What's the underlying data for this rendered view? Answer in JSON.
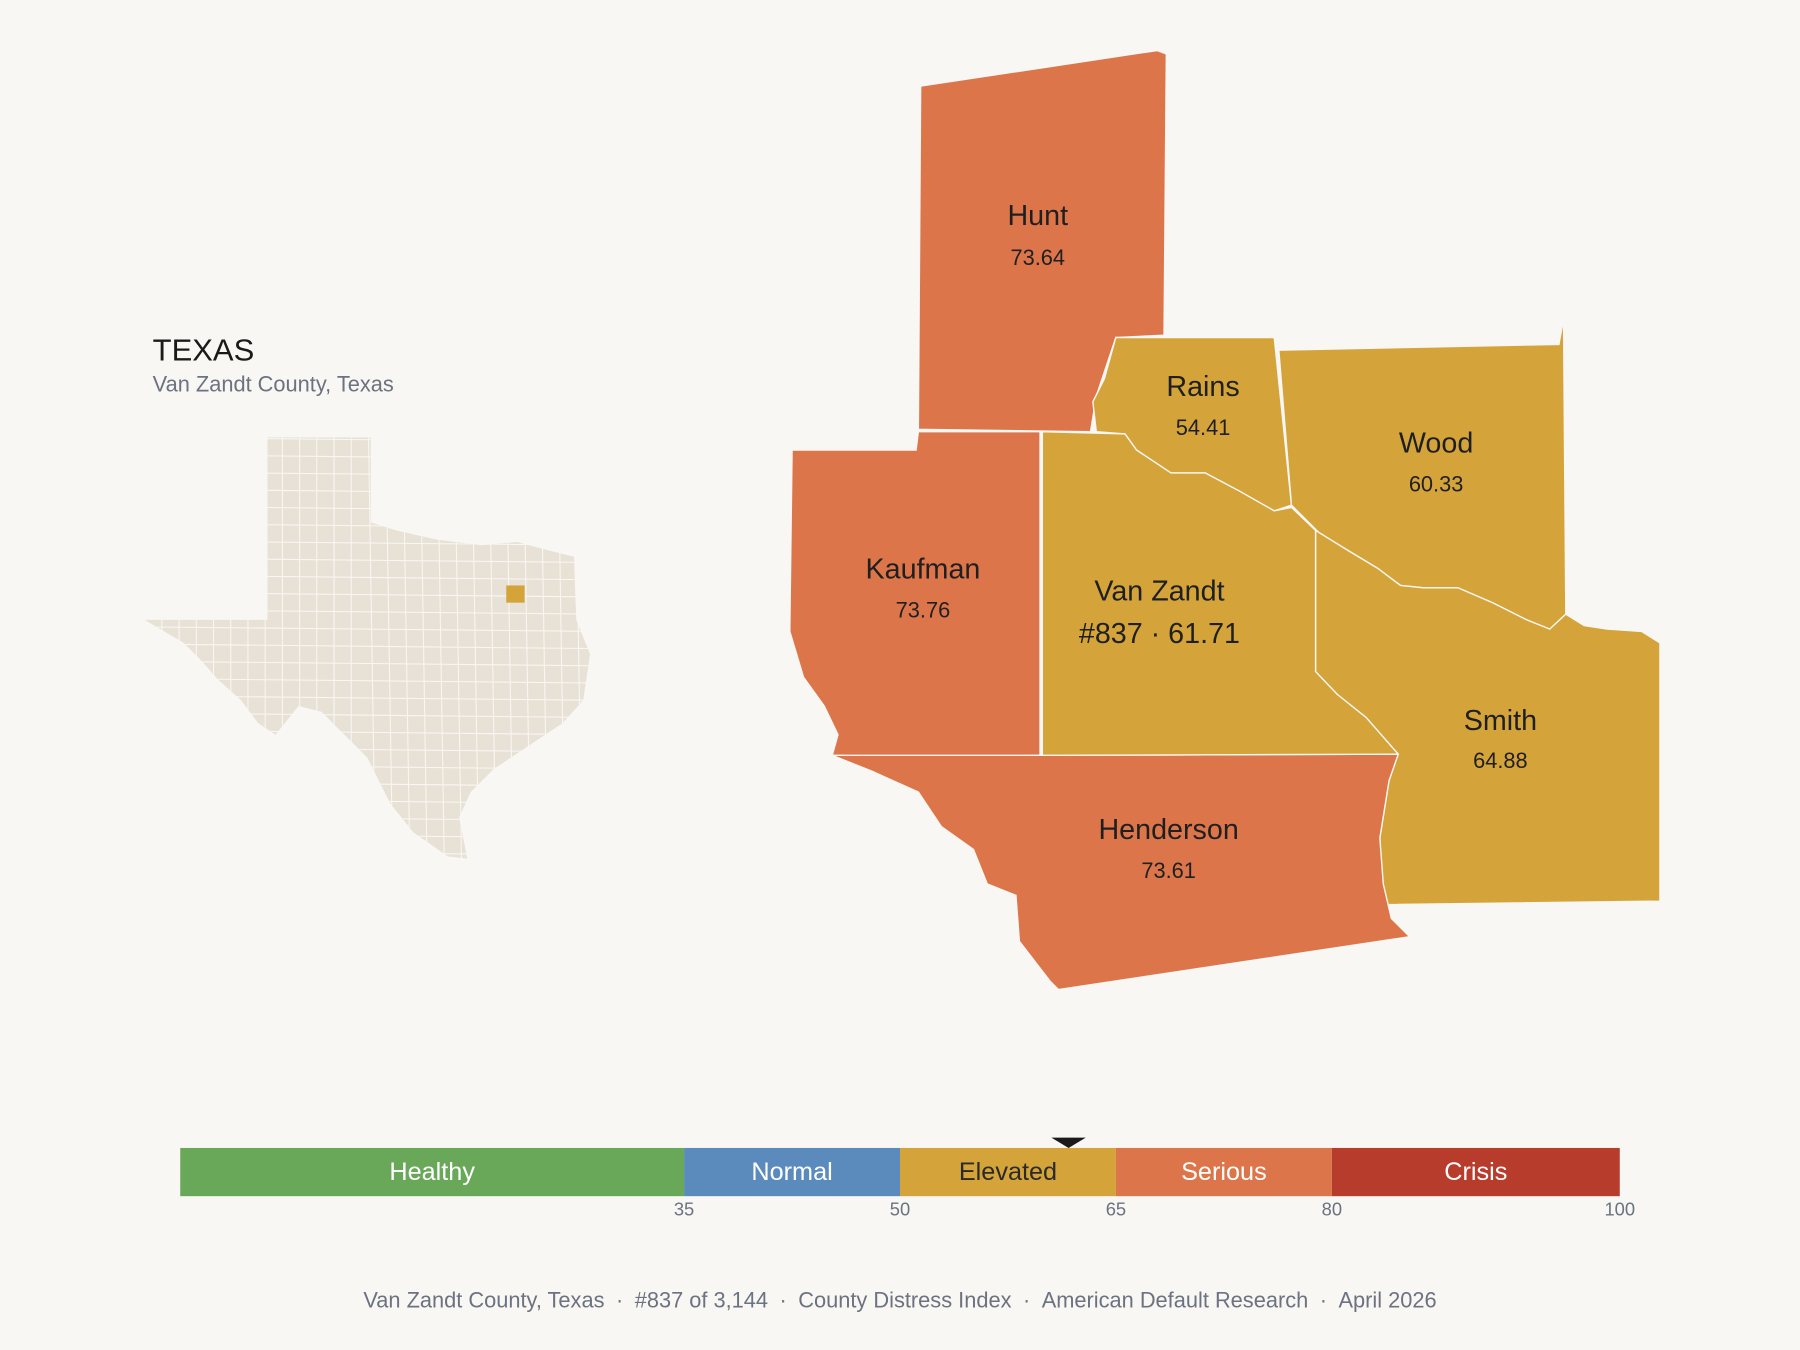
{
  "inset": {
    "title": "TEXAS",
    "subtitle": "Van Zandt County, Texas"
  },
  "counties": [
    {
      "name": "Hunt",
      "value": 73.64,
      "color": "#dc764a"
    },
    {
      "name": "Rains",
      "value": 54.41,
      "color": "#d4a43a"
    },
    {
      "name": "Wood",
      "value": 60.33,
      "color": "#d4a43a"
    },
    {
      "name": "Kaufman",
      "value": 73.76,
      "color": "#dc764a"
    },
    {
      "name": "Van Zandt",
      "value": 61.71,
      "label": "#837 · 61.71",
      "color": "#d4a43a"
    },
    {
      "name": "Smith",
      "value": 64.88,
      "color": "#d4a43a"
    },
    {
      "name": "Henderson",
      "value": 73.61,
      "color": "#dc764a"
    }
  ],
  "scale": {
    "lim": [
      0,
      100
    ],
    "ticks": [
      35,
      50,
      65,
      80,
      100
    ],
    "segments": [
      {
        "label": "Healthy",
        "color": "#68a858",
        "text_color": "#ffffff"
      },
      {
        "label": "Normal",
        "color": "#5b8bbd",
        "text_color": "#ffffff"
      },
      {
        "label": "Elevated",
        "color": "#d4a43a",
        "text_color": "#2a2a2a"
      },
      {
        "label": "Serious",
        "color": "#dc764a",
        "text_color": "#ffffff"
      },
      {
        "label": "Crisis",
        "color": "#b83c2c",
        "text_color": "#ffffff"
      }
    ]
  },
  "footer": {
    "separator": "·",
    "items": [
      "Van Zandt County, Texas",
      "#837 of 3,144",
      "County Distress Index",
      "American Default Research",
      "April 2026"
    ]
  }
}
